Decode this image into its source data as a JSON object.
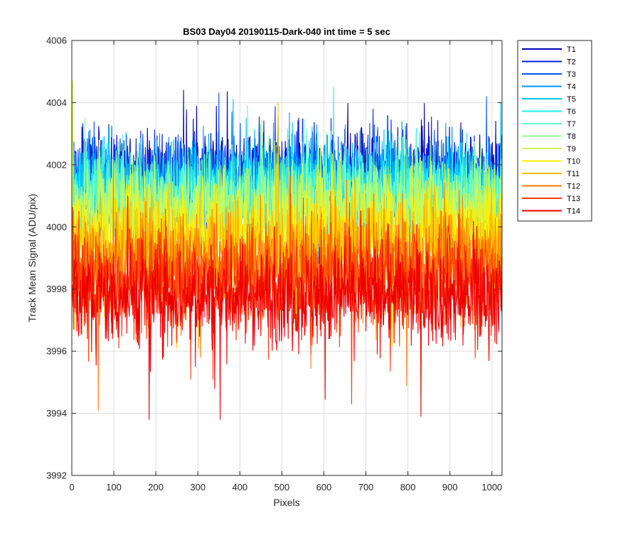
{
  "chart_data": {
    "type": "line",
    "title": "BS03 Day04 20190115-Dark-040 int time = 5 sec",
    "xlabel": "Pixels",
    "ylabel": "Track Mean Signal (ADU/pix)",
    "xlim": [
      0,
      1024
    ],
    "ylim": [
      3992,
      4006
    ],
    "xticks": [
      0,
      100,
      200,
      300,
      400,
      500,
      600,
      700,
      800,
      900,
      1000
    ],
    "yticks": [
      3992,
      3994,
      3996,
      3998,
      4000,
      4002,
      4004,
      4006
    ],
    "grid": true,
    "legend_position": "outside-top-right",
    "n_points": 1024,
    "series": [
      {
        "name": "T1",
        "color": "#0000b4",
        "mean": 4001.6,
        "spread": 1.4
      },
      {
        "name": "T2",
        "color": "#0022e0",
        "mean": 4001.5,
        "spread": 1.4
      },
      {
        "name": "T3",
        "color": "#0055ff",
        "mean": 4001.4,
        "spread": 1.4
      },
      {
        "name": "T4",
        "color": "#0095ff",
        "mean": 4001.3,
        "spread": 1.4
      },
      {
        "name": "T5",
        "color": "#00c8ff",
        "mean": 4001.2,
        "spread": 1.4
      },
      {
        "name": "T6",
        "color": "#1cf0f0",
        "mean": 4001.1,
        "spread": 1.4
      },
      {
        "name": "T7",
        "color": "#5ff7c8",
        "mean": 4001.0,
        "spread": 1.4
      },
      {
        "name": "T8",
        "color": "#96fa96",
        "mean": 4000.7,
        "spread": 1.4
      },
      {
        "name": "T9",
        "color": "#d2f750",
        "mean": 4000.3,
        "spread": 1.5
      },
      {
        "name": "T10",
        "color": "#ffee00",
        "mean": 3999.8,
        "spread": 1.5
      },
      {
        "name": "T11",
        "color": "#ffbb00",
        "mean": 3999.3,
        "spread": 1.6
      },
      {
        "name": "T12",
        "color": "#ff7a00",
        "mean": 3998.8,
        "spread": 1.6
      },
      {
        "name": "T13",
        "color": "#ff3d00",
        "mean": 3998.3,
        "spread": 1.6
      },
      {
        "name": "T14",
        "color": "#ee0000",
        "mean": 3997.8,
        "spread": 1.6
      }
    ],
    "annotated_extremes": [
      {
        "series": "T9",
        "x": 1,
        "y": 4004.7
      },
      {
        "series": "T1",
        "x": 265,
        "y": 4004.4
      },
      {
        "series": "T11",
        "x": 490,
        "y": 4004.0
      },
      {
        "series": "T6",
        "x": 622,
        "y": 4004.5
      },
      {
        "series": "T14",
        "x": 183,
        "y": 3993.8
      },
      {
        "series": "T14",
        "x": 352,
        "y": 3993.8
      },
      {
        "series": "T12",
        "x": 62,
        "y": 3994.1
      },
      {
        "series": "T13",
        "x": 665,
        "y": 3994.3
      }
    ]
  }
}
